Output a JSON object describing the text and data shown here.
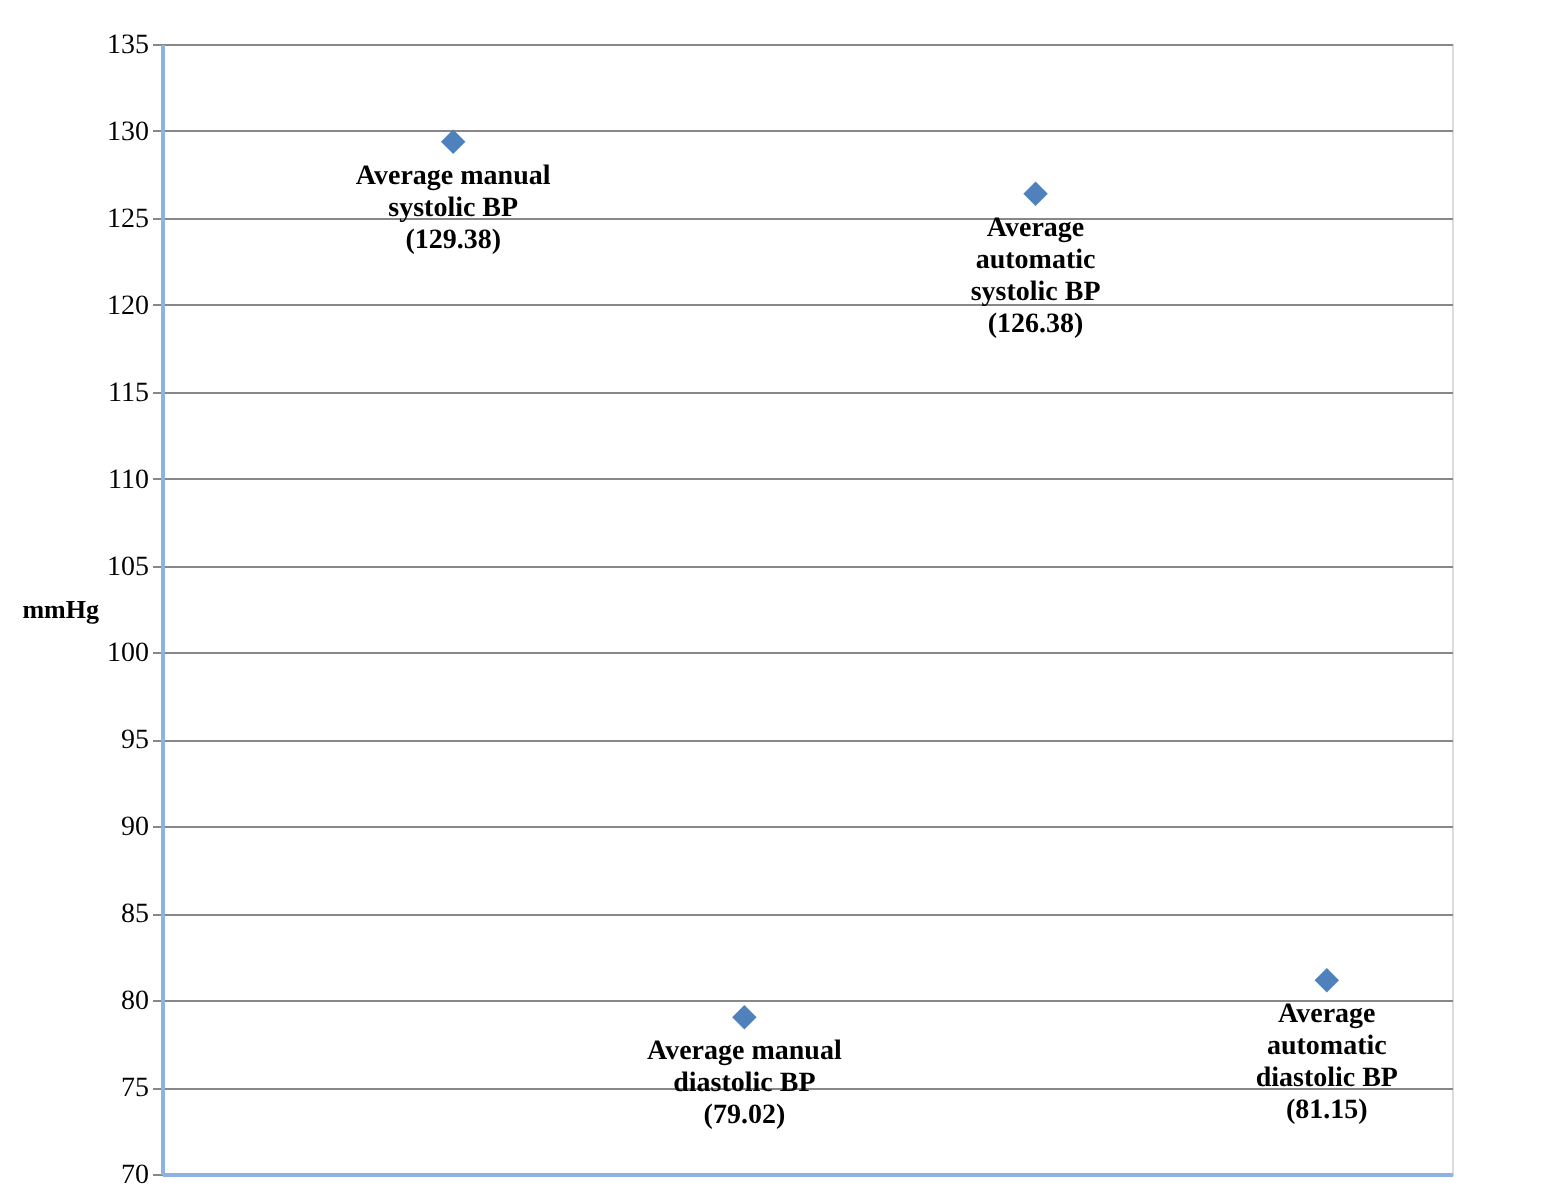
{
  "chart_data": {
    "type": "scatter",
    "ylabel": "mmHg",
    "categories": [
      null,
      null,
      null,
      null
    ],
    "series": [
      {
        "color": "#4f81bd",
        "values": [
          129.38,
          79.02,
          126.38,
          81.15
        ],
        "value_labels": [
          "Average manual\nsystolic BP\n(129.38)",
          "Average manual\ndiastolic BP\n(79.02)",
          "Average\nautomatic\nsystolic BP\n(126.38)",
          "Average\nautomatic\ndiastolic BP\n(81.15)"
        ]
      }
    ],
    "ylim": [
      70,
      135
    ],
    "yticks": [
      70,
      75,
      80,
      85,
      90,
      95,
      100,
      105,
      110,
      115,
      120,
      125,
      130,
      135
    ],
    "grid": "y",
    "marker": "diamond"
  }
}
